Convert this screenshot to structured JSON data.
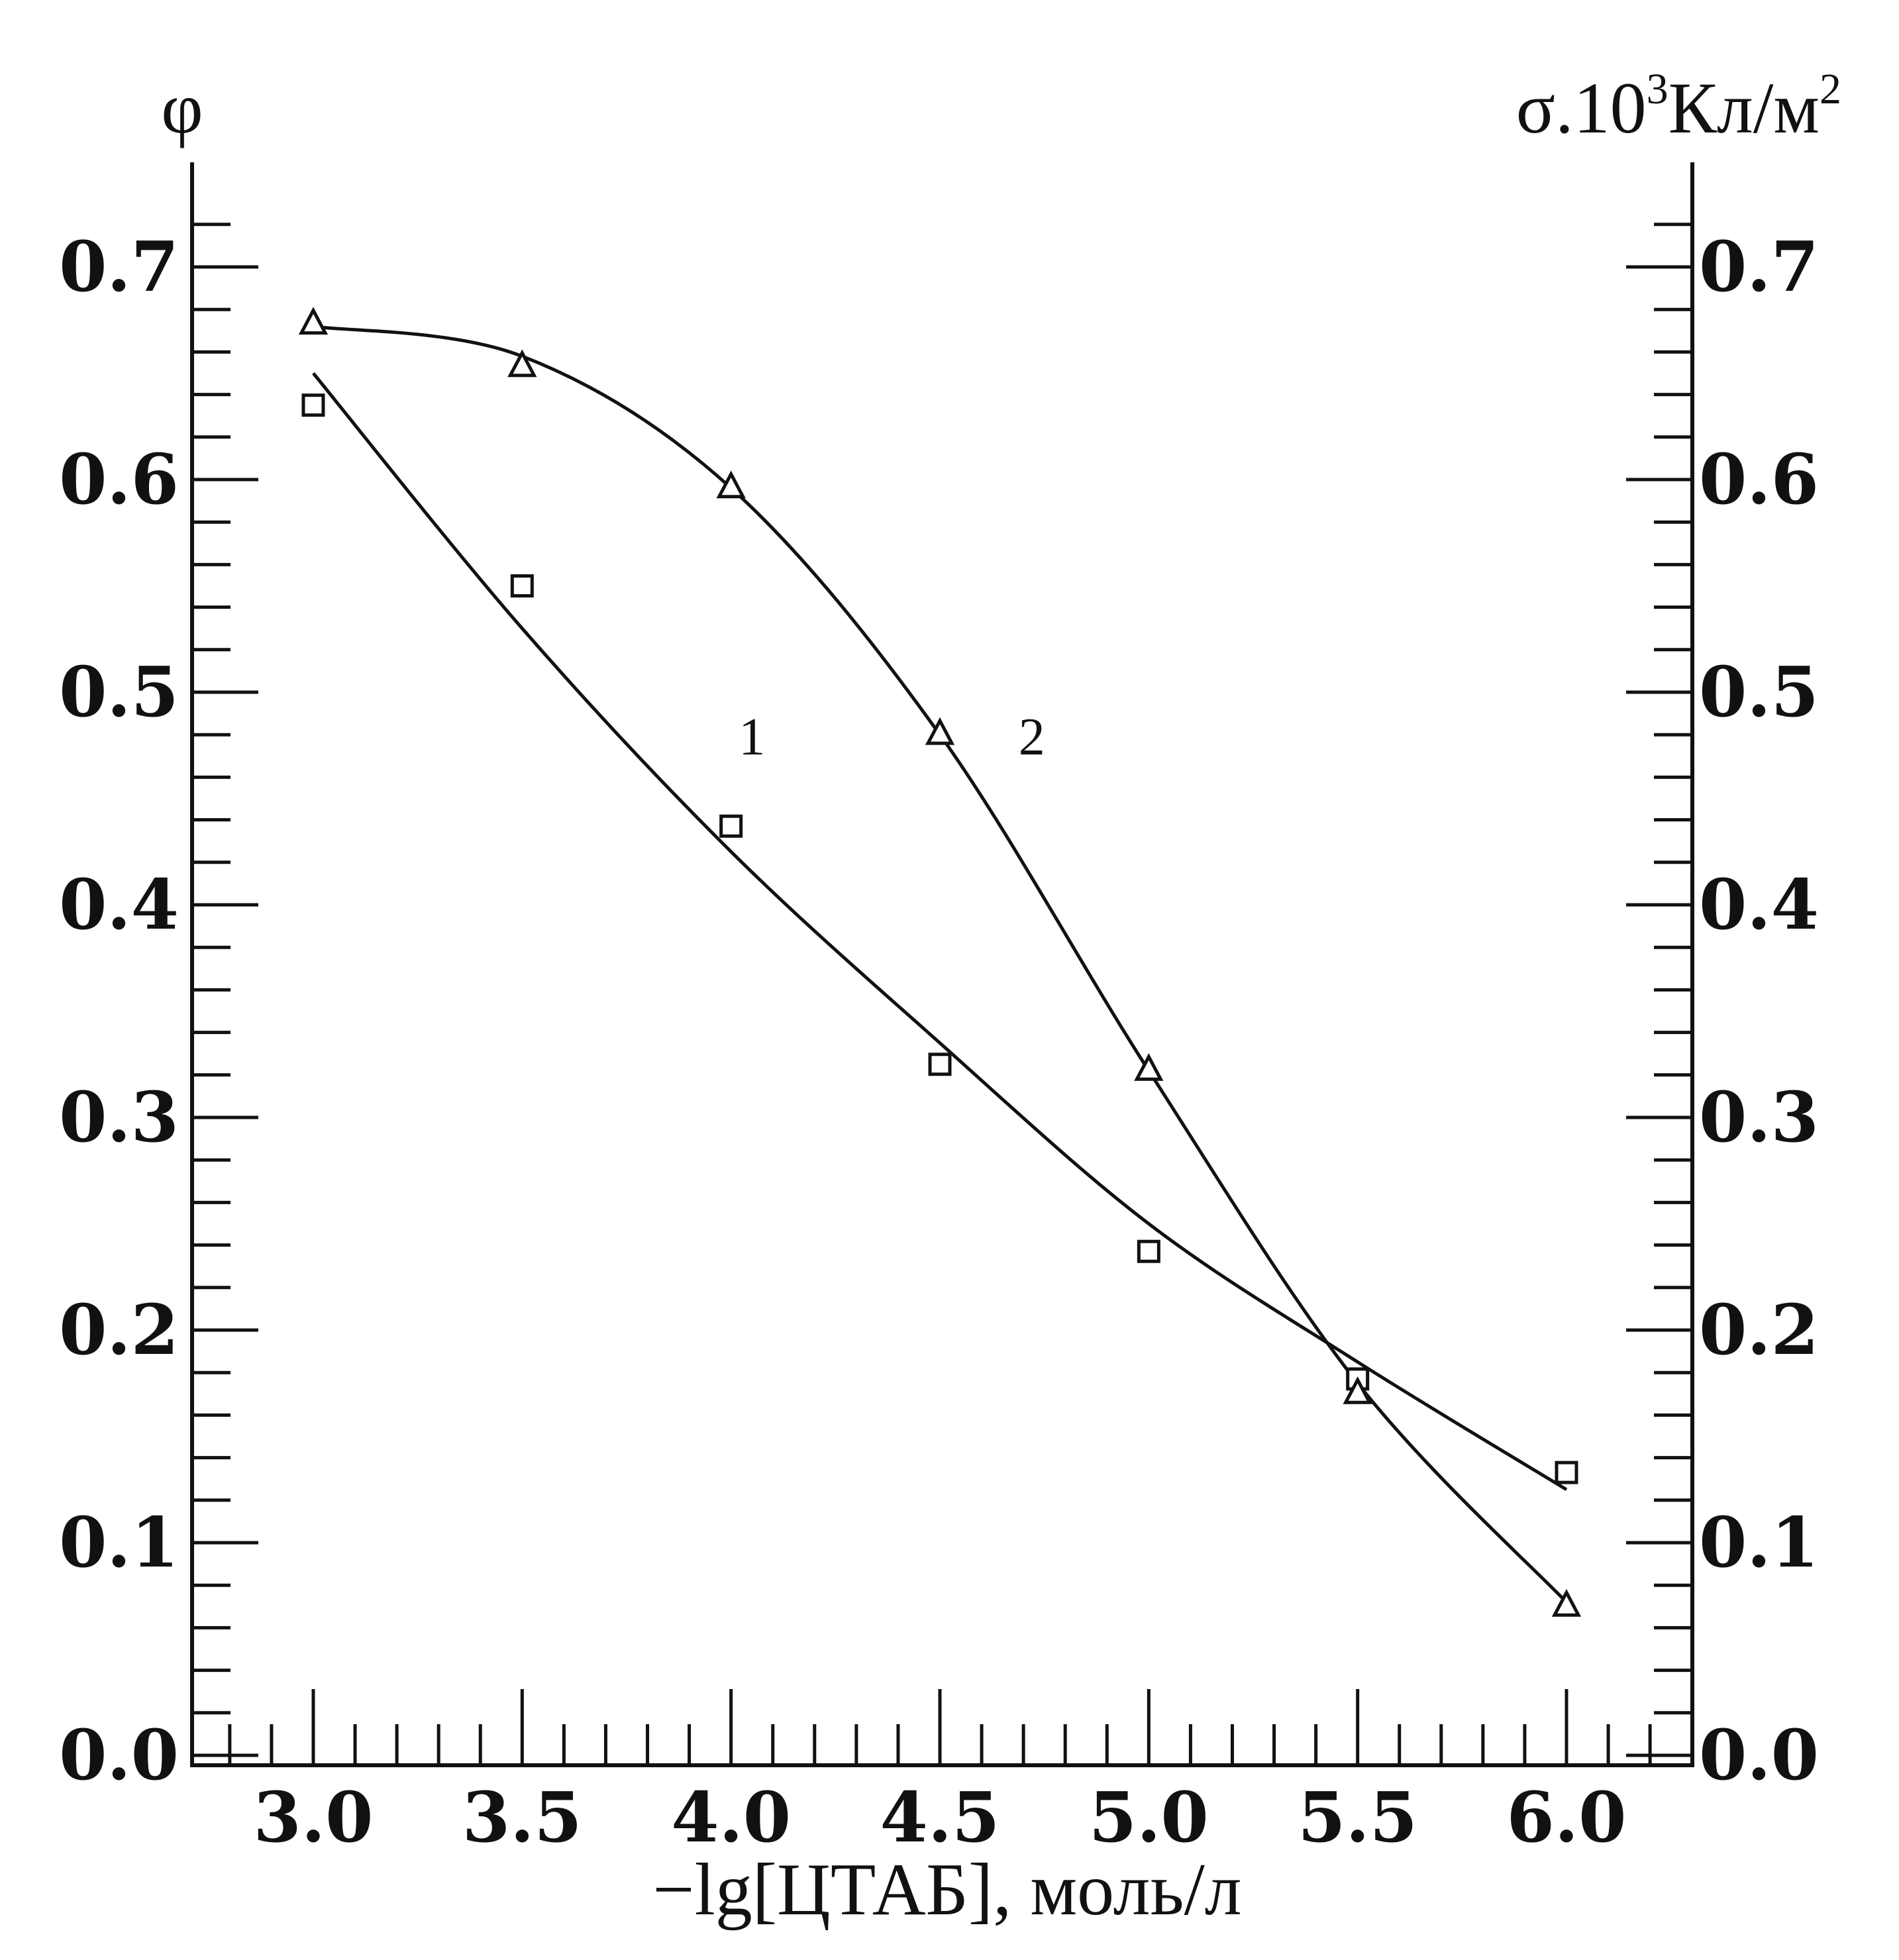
{
  "chart_data": {
    "type": "scatter",
    "left_axis_label": "φ",
    "right_axis_label_prefix": "σ.10",
    "right_axis_label_exp1": "3",
    "right_axis_label_unit": "Кл/м",
    "right_axis_label_exp2": "2",
    "xlabel": "−lg[ЦТАБ],  моль/л",
    "xlim": [
      2.7,
      6.3
    ],
    "ylim": [
      0.0,
      0.74
    ],
    "x_ticks": [
      "3.0",
      "3.5",
      "4.0",
      "4.5",
      "5.0",
      "5.5",
      "6.0"
    ],
    "y_ticks_left": [
      "0.0",
      "0.1",
      "0.2",
      "0.3",
      "0.4",
      "0.5",
      "0.6",
      "0.7"
    ],
    "y_ticks_right": [
      "0.0",
      "0.1",
      "0.2",
      "0.3",
      "0.4",
      "0.5",
      "0.6",
      "0.7"
    ],
    "grid": false,
    "series": [
      {
        "name": "1",
        "marker": "square",
        "x": [
          3.0,
          3.5,
          4.0,
          4.5,
          5.0,
          5.5,
          6.0
        ],
        "y": [
          0.635,
          0.55,
          0.437,
          0.325,
          0.237,
          0.177,
          0.133
        ],
        "fit_y": [
          0.65,
          0.53,
          0.425,
          0.335,
          0.25,
          0.185,
          0.125
        ]
      },
      {
        "name": "2",
        "marker": "triangle",
        "x": [
          3.0,
          3.5,
          4.0,
          4.5,
          5.0,
          5.5,
          6.0
        ],
        "y": [
          0.673,
          0.653,
          0.596,
          0.48,
          0.322,
          0.17,
          0.07
        ],
        "fit_y": [
          0.672,
          0.658,
          0.596,
          0.48,
          0.322,
          0.175,
          0.072
        ]
      }
    ],
    "annotations": [
      {
        "text": "1",
        "x": 4.05,
        "y": 0.48
      },
      {
        "text": "2",
        "x": 4.72,
        "y": 0.48
      }
    ]
  }
}
